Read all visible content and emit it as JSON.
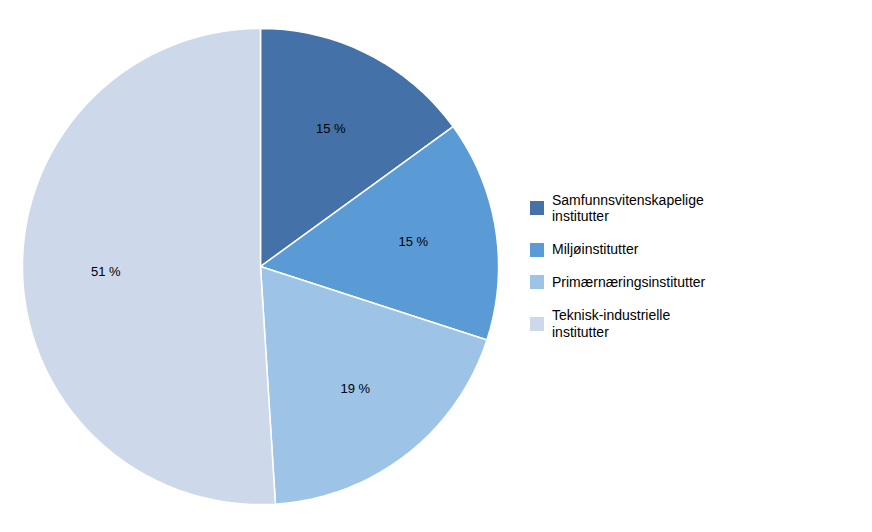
{
  "chart_data": {
    "type": "pie",
    "categories": [
      "Samfunnsvitenskapelige\ninstitutter",
      "Miljøinstitutter",
      "Primærnæringsinstitutter",
      "Teknisk-industrielle\ninstitutter"
    ],
    "values": [
      15,
      15,
      19,
      51
    ],
    "value_labels": [
      "15 %",
      "15 %",
      "19 %",
      "51 %"
    ],
    "colors": [
      "#4472a8",
      "#5b9bd5",
      "#9dc3e6",
      "#cdd9ea"
    ],
    "data_labels": true,
    "legend": "right"
  }
}
